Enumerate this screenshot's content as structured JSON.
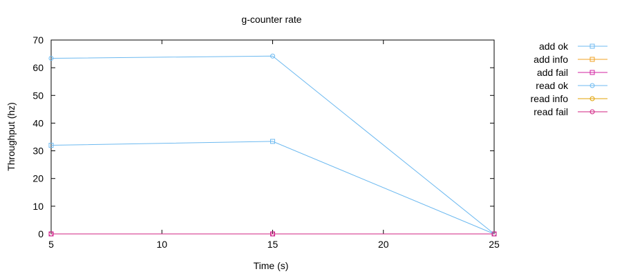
{
  "chart_data": {
    "type": "line",
    "title": "g-counter rate",
    "xlabel": "Time (s)",
    "ylabel": "Throughput (hz)",
    "xlim": [
      5,
      25
    ],
    "ylim": [
      0,
      70
    ],
    "xticks": [
      5,
      10,
      15,
      20,
      25
    ],
    "yticks": [
      0,
      10,
      20,
      30,
      40,
      50,
      60,
      70
    ],
    "grid": false,
    "legend_position": "top-right outside",
    "series": [
      {
        "name": "add ok",
        "color": "#6cb9f0",
        "marker": "square",
        "points": [
          [
            5,
            32.0
          ],
          [
            15,
            33.4
          ],
          [
            25,
            0
          ]
        ]
      },
      {
        "name": "add info",
        "color": "#f0a020",
        "marker": "square",
        "points": []
      },
      {
        "name": "add fail",
        "color": "#d020a0",
        "marker": "square",
        "points": [
          [
            5,
            0
          ],
          [
            15,
            0
          ],
          [
            25,
            0
          ]
        ]
      },
      {
        "name": "read ok",
        "color": "#6cb9f0",
        "marker": "circle",
        "points": [
          [
            5,
            63.4
          ],
          [
            15,
            64.2
          ],
          [
            25,
            0
          ]
        ]
      },
      {
        "name": "read info",
        "color": "#e0a000",
        "marker": "circle",
        "points": []
      },
      {
        "name": "read fail",
        "color": "#d02080",
        "marker": "circle",
        "points": [
          [
            5,
            0
          ],
          [
            15,
            0
          ],
          [
            25,
            0
          ]
        ]
      }
    ]
  }
}
